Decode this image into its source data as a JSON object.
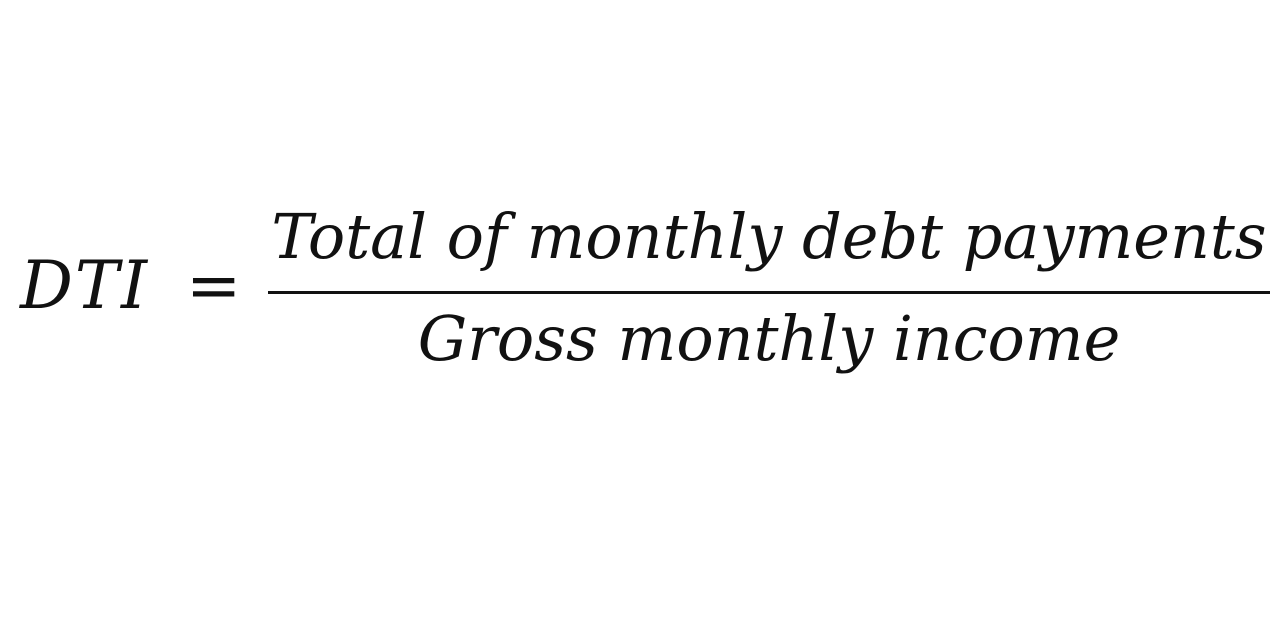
{
  "formula": {
    "lhs": "DTI",
    "operator": "=",
    "numerator": "Total of monthly debt payments",
    "denominator": "Gross monthly income"
  }
}
